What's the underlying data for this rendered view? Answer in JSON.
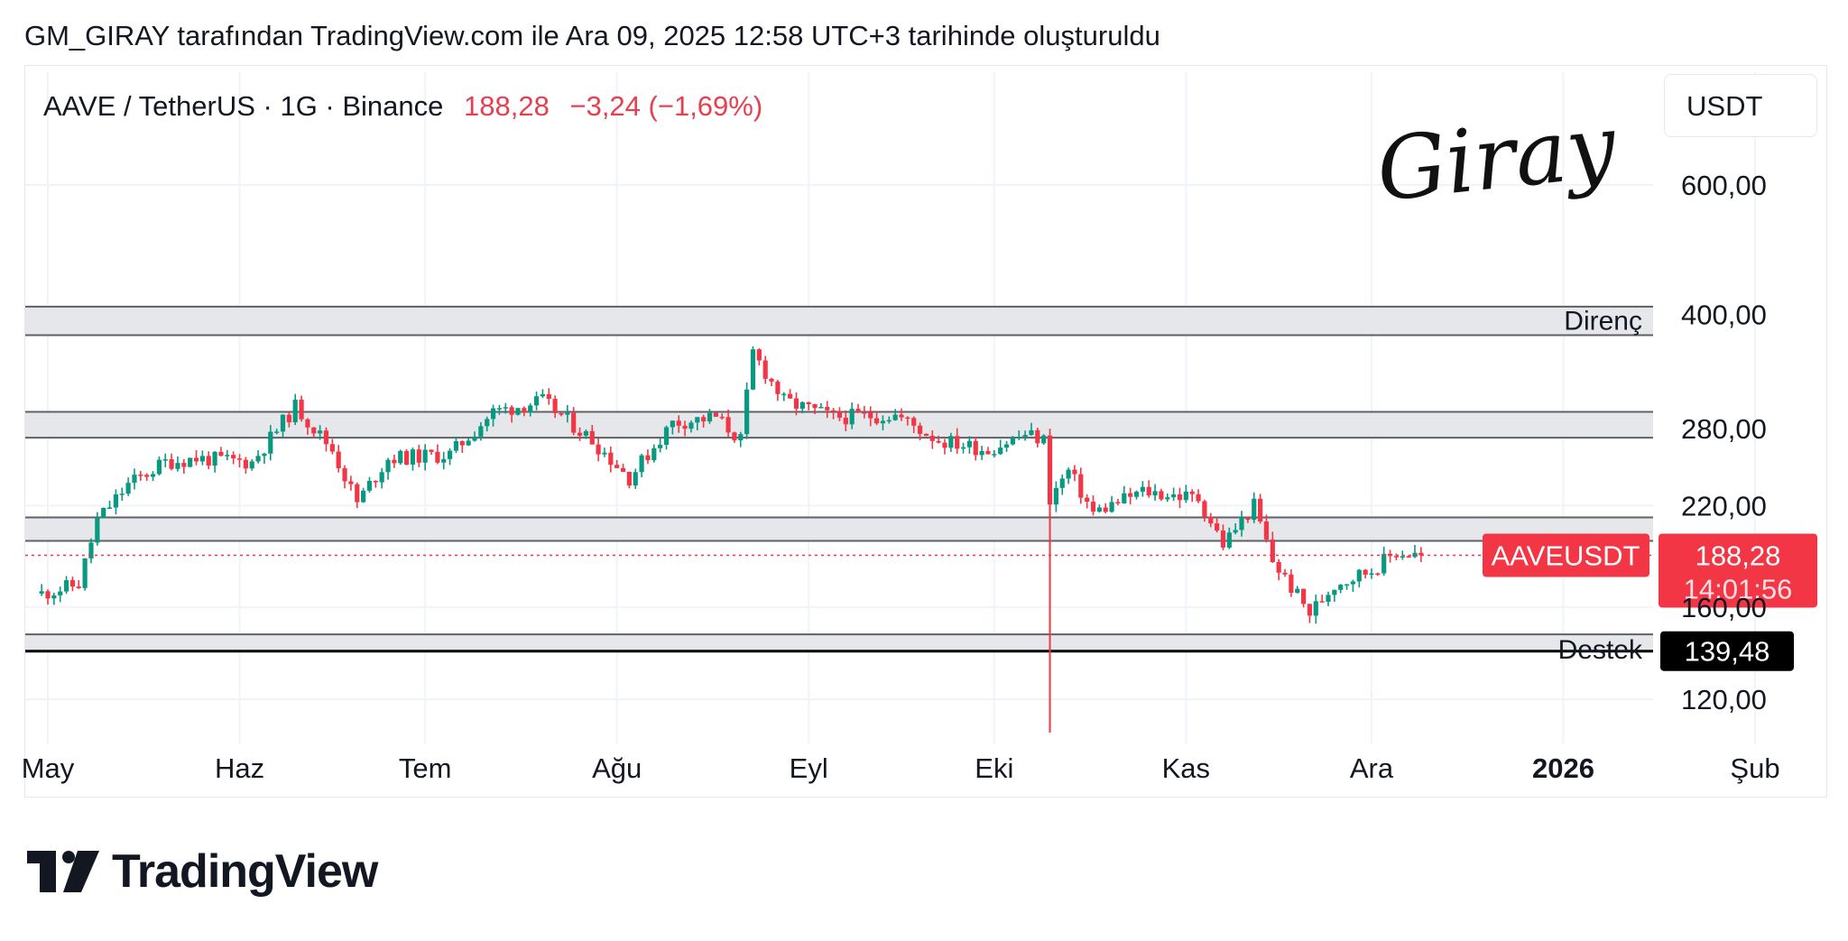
{
  "caption": "GM_GIRAY tarafından TradingView.com ile Ara 09, 2025 12:58 UTC+3 tarihinde oluşturuldu",
  "symbol": {
    "label": "AAVE / TetherUS · 1G · Binance",
    "price": "188,28",
    "change": "−3,24 (−1,69%)"
  },
  "currency": "USDT",
  "watermark": "Giray",
  "brand": "TradingView",
  "colors": {
    "up": "#089981",
    "down": "#f23645",
    "zone_fill": "#e6e7ea",
    "zone_edge": "#5d6066",
    "price_label": "#f23645",
    "support_label": "#000000"
  },
  "chart_data": {
    "type": "candlestick",
    "title": "AAVE / TetherUS · 1G · Binance",
    "y_scale": "log",
    "y_ticks": [
      "600,00",
      "400,00",
      "280,00",
      "220,00",
      "160,00",
      "120,00"
    ],
    "x_ticks": [
      "May",
      "Haz",
      "Tem",
      "Ağu",
      "Eyl",
      "Eki",
      "Kas",
      "Ara",
      "2026",
      "Şub"
    ],
    "zones": [
      {
        "label": "Direnç",
        "low": 375,
        "high": 410
      },
      {
        "label": "",
        "low": 272,
        "high": 295
      },
      {
        "label": "",
        "low": 197,
        "high": 212
      },
      {
        "label": "Destek",
        "low": 139.48,
        "high": 147
      }
    ],
    "last_price": {
      "symbol": "AAVEUSDT",
      "value": "188,28",
      "countdown": "14:01:56"
    },
    "support_marker": {
      "value": "139,48"
    },
    "approx_path": [
      {
        "date": "2025-04-30",
        "close": 167
      },
      {
        "date": "2025-05-06",
        "close": 172
      },
      {
        "date": "2025-05-09",
        "close": 210
      },
      {
        "date": "2025-05-14",
        "close": 235
      },
      {
        "date": "2025-05-20",
        "close": 252
      },
      {
        "date": "2025-05-25",
        "close": 255
      },
      {
        "date": "2025-06-03",
        "close": 252
      },
      {
        "date": "2025-06-10",
        "close": 300
      },
      {
        "date": "2025-06-16",
        "close": 262
      },
      {
        "date": "2025-06-20",
        "close": 222
      },
      {
        "date": "2025-06-25",
        "close": 255
      },
      {
        "date": "2025-07-05",
        "close": 258
      },
      {
        "date": "2025-07-12",
        "close": 295
      },
      {
        "date": "2025-07-20",
        "close": 305
      },
      {
        "date": "2025-07-28",
        "close": 270
      },
      {
        "date": "2025-08-03",
        "close": 240
      },
      {
        "date": "2025-08-10",
        "close": 285
      },
      {
        "date": "2025-08-17",
        "close": 290
      },
      {
        "date": "2025-08-21",
        "close": 270
      },
      {
        "date": "2025-08-23",
        "close": 355
      },
      {
        "date": "2025-08-28",
        "close": 305
      },
      {
        "date": "2025-09-05",
        "close": 290
      },
      {
        "date": "2025-09-15",
        "close": 292
      },
      {
        "date": "2025-09-22",
        "close": 270
      },
      {
        "date": "2025-09-30",
        "close": 262
      },
      {
        "date": "2025-10-06",
        "close": 275
      },
      {
        "date": "2025-10-09",
        "close": 270
      },
      {
        "date": "2025-10-10",
        "close": 225
      },
      {
        "date": "2025-10-13",
        "close": 245
      },
      {
        "date": "2025-10-17",
        "close": 215
      },
      {
        "date": "2025-10-25",
        "close": 230
      },
      {
        "date": "2025-11-03",
        "close": 225
      },
      {
        "date": "2025-11-07",
        "close": 195
      },
      {
        "date": "2025-11-12",
        "close": 220
      },
      {
        "date": "2025-11-15",
        "close": 185
      },
      {
        "date": "2025-11-21",
        "close": 157
      },
      {
        "date": "2025-11-25",
        "close": 172
      },
      {
        "date": "2025-12-01",
        "close": 180
      },
      {
        "date": "2025-12-05",
        "close": 190
      },
      {
        "date": "2025-12-09",
        "close": 188.28
      }
    ]
  }
}
